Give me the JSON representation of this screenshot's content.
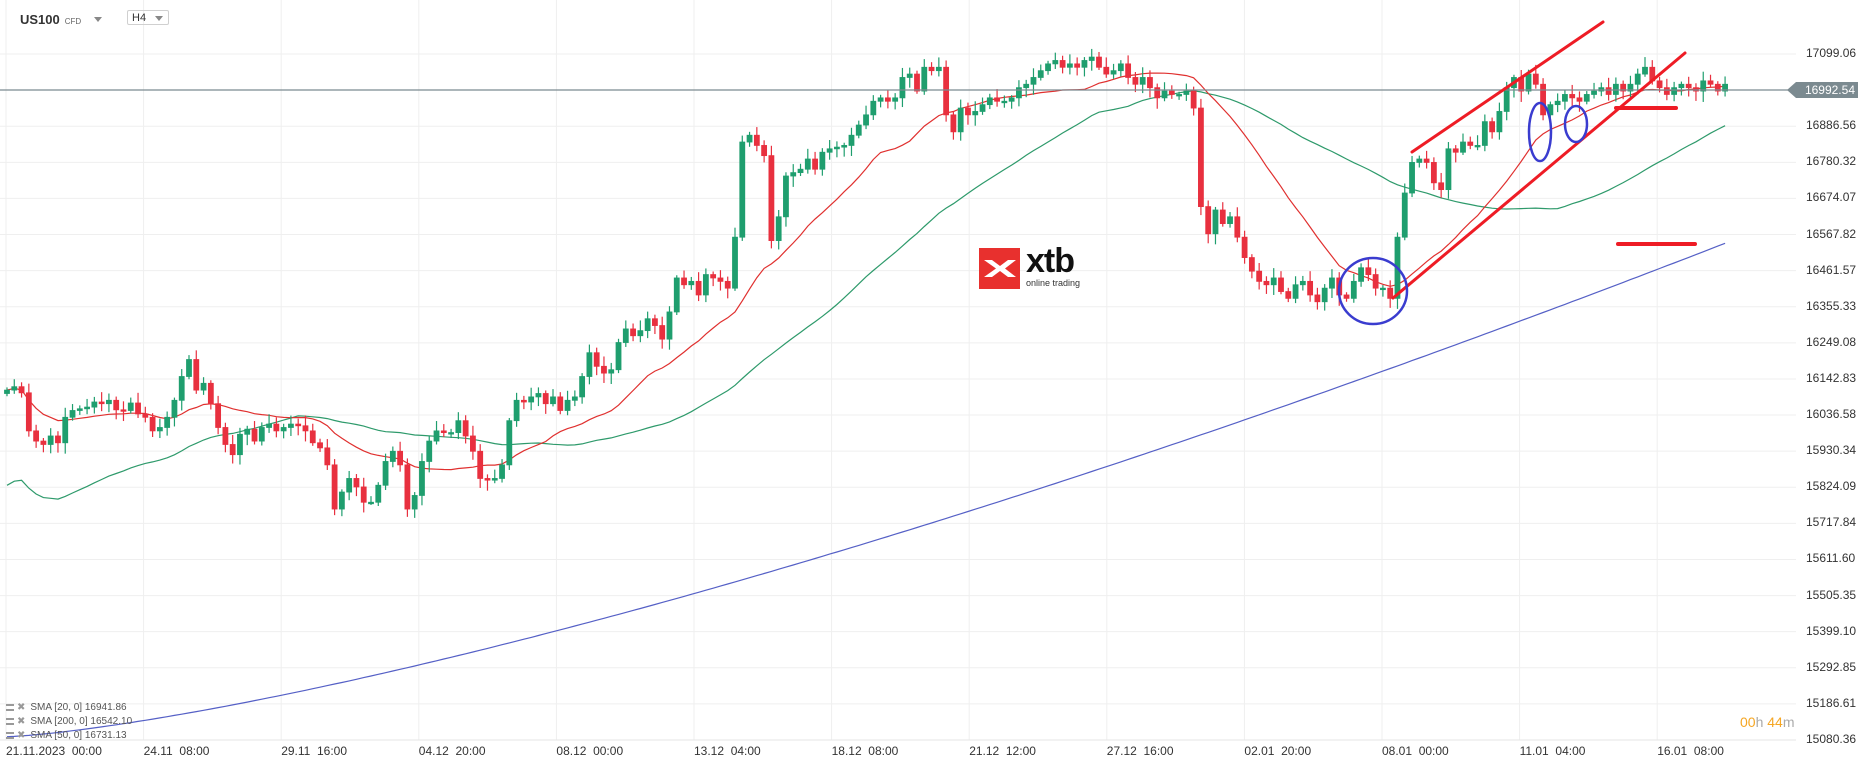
{
  "header": {
    "symbol": "US100",
    "symbol_type": "CFD",
    "timeframe": "H4"
  },
  "logo": {
    "brand": "xtb",
    "tagline": "online trading"
  },
  "countdown": {
    "hours": "00",
    "h_unit": "h",
    "minutes": "44",
    "m_unit": "m"
  },
  "current_price": {
    "label": "16992.54",
    "value": 16992.54,
    "color": "#7b8a90"
  },
  "legend": [
    {
      "label": "SMA [20,  0] 16941.86"
    },
    {
      "label": "SMA [200,  0] 16542.10"
    },
    {
      "label": "SMA [50,  0] 16731.13"
    }
  ],
  "colors": {
    "up": "#1f9e6e",
    "down": "#e8303f",
    "sma20": "#e0302f",
    "sma50": "#2e9a6b",
    "sma200": "#5560c6",
    "annot_red": "#ee1c25",
    "annot_blue": "#3a3ccf",
    "grid": "#efefef"
  },
  "chart_data": {
    "type": "candlestick",
    "title": "US100 CFD H4",
    "xlabel": "",
    "ylabel": "",
    "ylim": [
      15080.36,
      17099.06
    ],
    "y_ticks": [
      "17099.06",
      "16886.56",
      "16780.32",
      "16674.07",
      "16567.82",
      "16461.57",
      "16355.33",
      "16249.08",
      "16142.83",
      "16036.58",
      "15930.34",
      "15824.09",
      "15717.84",
      "15611.60",
      "15505.35",
      "15399.10",
      "15292.85",
      "15186.61",
      "15080.36"
    ],
    "x_ticks": [
      "21.11.2023  00:00",
      "24.11  08:00",
      "29.11  16:00",
      "04.12  20:00",
      "08.12  00:00",
      "13.12  04:00",
      "18.12  08:00",
      "21.12  12:00",
      "27.12  16:00",
      "02.01  20:00",
      "08.01  00:00",
      "11.01  04:00",
      "16.01  08:00"
    ],
    "grid": true,
    "legend_position": "bottom-left",
    "series": [
      {
        "name": "SMA [20, 0]",
        "last": 16941.86
      },
      {
        "name": "SMA [200, 0]",
        "last": 16542.1
      },
      {
        "name": "SMA [50, 0]",
        "last": 16731.13
      }
    ],
    "candles_close": [
      16110,
      16120,
      16102,
      15990,
      15960,
      15950,
      15975,
      15955,
      16030,
      16050,
      16055,
      16060,
      16075,
      16070,
      16080,
      16052,
      16050,
      16072,
      16040,
      16030,
      15990,
      16000,
      16030,
      16080,
      16150,
      16200,
      16110,
      16130,
      16070,
      16000,
      15950,
      15920,
      15980,
      15995,
      15960,
      16000,
      16010,
      15990,
      16000,
      16010,
      16005,
      15990,
      15955,
      15940,
      15890,
      15760,
      15810,
      15850,
      15825,
      15780,
      15780,
      15830,
      15900,
      15930,
      15890,
      15760,
      15800,
      15900,
      15960,
      15990,
      15985,
      15985,
      16020,
      15975,
      15930,
      15850,
      15845,
      15850,
      15890,
      16020,
      16080,
      16075,
      16090,
      16100,
      16070,
      16090,
      16050,
      16080,
      16090,
      16150,
      16220,
      16180,
      16160,
      16170,
      16250,
      16290,
      16270,
      16285,
      16320,
      16300,
      16260,
      16340,
      16440,
      16420,
      16430,
      16390,
      16450,
      16440,
      16430,
      16410,
      16560,
      16840,
      16860,
      16830,
      16800,
      16550,
      16620,
      16740,
      16750,
      16760,
      16790,
      16760,
      16810,
      16820,
      16825,
      16830,
      16860,
      16890,
      16920,
      16960,
      16970,
      16960,
      16970,
      17030,
      17040,
      16990,
      17060,
      17050,
      17060,
      16920,
      16870,
      16940,
      16920,
      16930,
      16950,
      16970,
      16960,
      16960,
      16970,
      17000,
      17010,
      17030,
      17050,
      17070,
      17080,
      17060,
      17070,
      17060,
      17080,
      17090,
      17060,
      17040,
      17050,
      17070,
      17030,
      17010,
      17030,
      17000,
      16970,
      16990,
      16980,
      16980,
      16990,
      16940,
      16650,
      16570,
      16640,
      16600,
      16620,
      16560,
      16500,
      16460,
      16430,
      16420,
      16440,
      16400,
      16380,
      16420,
      16430,
      16390,
      16370,
      16410,
      16440,
      16390,
      16380,
      16430,
      16470,
      16450,
      16410,
      16410,
      16380,
      16560,
      16690,
      16780,
      16790,
      16780,
      16720,
      16700,
      16820,
      16810,
      16840,
      16830,
      16830,
      16900,
      16870,
      16930,
      17000,
      17030,
      16990,
      17040,
      17010,
      16920,
      16950,
      16960,
      16980,
      16970,
      16960,
      16980,
      16990,
      17000,
      16980,
      17010,
      16990,
      17010,
      17040,
      17060,
      17020,
      17000,
      16980,
      17000,
      17010,
      17000,
      16990,
      17020,
      17010,
      16990,
      17010
    ]
  }
}
